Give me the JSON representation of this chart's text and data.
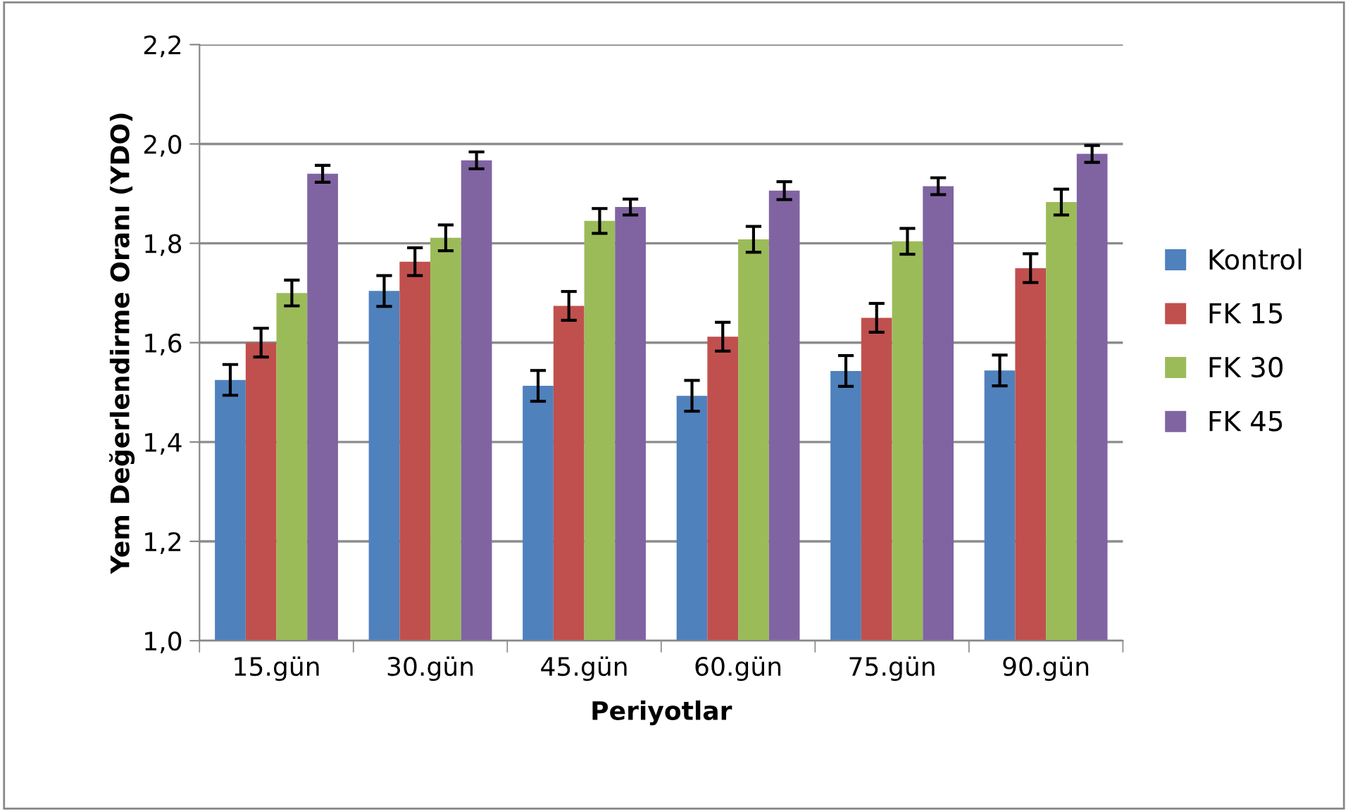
{
  "chart_data": {
    "type": "bar",
    "xlabel": "Periyotlar",
    "ylabel": "Yem Değerlendirme Oranı (YDO)",
    "categories": [
      "15.gün",
      "30.gün",
      "45.gün",
      "60.gün",
      "75.gün",
      "90.gün"
    ],
    "ylim": [
      1.0,
      2.2
    ],
    "yticks": [
      {
        "value": 1.0,
        "label": "1,0"
      },
      {
        "value": 1.2,
        "label": "1,2"
      },
      {
        "value": 1.4,
        "label": "1,4"
      },
      {
        "value": 1.6,
        "label": "1,6"
      },
      {
        "value": 1.8,
        "label": "1,8"
      },
      {
        "value": 2.0,
        "label": "2,0"
      },
      {
        "value": 2.2,
        "label": "2,2"
      }
    ],
    "grid": "y",
    "legend": "right",
    "series": [
      {
        "name": "Kontrol",
        "color": "#4f81bd",
        "values": [
          1.525,
          1.704,
          1.513,
          1.493,
          1.543,
          1.544
        ],
        "errors": [
          0.031,
          0.031,
          0.031,
          0.031,
          0.031,
          0.031
        ]
      },
      {
        "name": "FK 15",
        "color": "#c0504d",
        "values": [
          1.6,
          1.763,
          1.674,
          1.612,
          1.65,
          1.75
        ],
        "errors": [
          0.029,
          0.028,
          0.029,
          0.029,
          0.029,
          0.029
        ]
      },
      {
        "name": "FK 30",
        "color": "#9bbb59",
        "values": [
          1.7,
          1.811,
          1.845,
          1.808,
          1.804,
          1.883
        ],
        "errors": [
          0.026,
          0.026,
          0.025,
          0.026,
          0.026,
          0.026
        ]
      },
      {
        "name": "FK 45",
        "color": "#8064a2",
        "values": [
          1.94,
          1.967,
          1.873,
          1.906,
          1.915,
          1.98
        ],
        "errors": [
          0.017,
          0.017,
          0.016,
          0.018,
          0.017,
          0.017
        ]
      }
    ]
  }
}
